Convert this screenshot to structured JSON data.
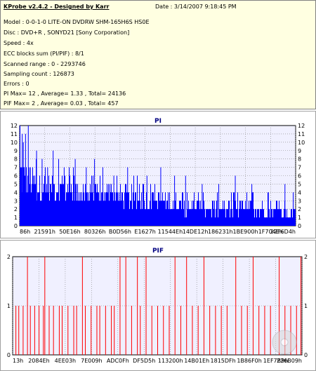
{
  "info": {
    "title": "KProbe v2.4.2 - Designed by Karr",
    "date": "Date : 3/14/2007 9:18:45 PM",
    "lines": [
      "Model : 0-0-1-0 LITE-ON DVDRW SHM-165H6S HS0E",
      "Disc : DVD+R , SONYD21 [Sony Corporation]",
      "Speed : 4x",
      "ECC blocks sum (PI/PIF) : 8/1",
      "Scanned range : 0 - 2293746",
      "Sampling count : 126873",
      "Errors : 0",
      "PI Max= 12 , Average= 1.33 , Total= 24136",
      "PIF Max= 2 , Average= 0.03 , Total= 457"
    ]
  },
  "colors": {
    "pi": "#0000ff",
    "pif": "#ff0000",
    "background": "#f0f0ff",
    "info_bg": "#ffffe1",
    "title": "#000080"
  },
  "chart_data": [
    {
      "type": "bar",
      "title": "PI",
      "ylim": [
        0,
        12
      ],
      "yticks": [
        0,
        1,
        2,
        3,
        4,
        5,
        6,
        7,
        8,
        9,
        10,
        11,
        12
      ],
      "xtick_labels": [
        "86h",
        "21591h",
        "50E16h",
        "80326h",
        "B0D56h",
        "E1627h",
        "11544Eh",
        "14DE12h",
        "186231h",
        "1BE900h",
        "1F704Eh",
        "22F6D4h"
      ],
      "x_range_label": "0 - 2293746",
      "grid": true,
      "max": 12,
      "average": 1.33,
      "envelope_profile": [
        [
          0.0,
          9
        ],
        [
          0.02,
          8
        ],
        [
          0.05,
          7
        ],
        [
          0.1,
          6
        ],
        [
          0.18,
          6
        ],
        [
          0.25,
          5
        ],
        [
          0.35,
          5
        ],
        [
          0.45,
          4
        ],
        [
          0.55,
          4
        ],
        [
          0.65,
          3
        ],
        [
          0.75,
          3
        ],
        [
          0.85,
          3
        ],
        [
          1.0,
          2
        ]
      ],
      "base_profile": [
        [
          0.0,
          3
        ],
        [
          0.15,
          3
        ],
        [
          0.4,
          2
        ],
        [
          0.75,
          1
        ],
        [
          1.0,
          1
        ]
      ],
      "spikes": [
        [
          0.0,
          12
        ],
        [
          0.008,
          11
        ],
        [
          0.012,
          10
        ],
        [
          0.02,
          11
        ],
        [
          0.03,
          12
        ],
        [
          0.06,
          9
        ],
        [
          0.08,
          8
        ],
        [
          0.1,
          7
        ],
        [
          0.12,
          9
        ],
        [
          0.14,
          8
        ],
        [
          0.16,
          7
        ],
        [
          0.2,
          8
        ],
        [
          0.24,
          7
        ],
        [
          0.27,
          8
        ],
        [
          0.3,
          7
        ],
        [
          0.34,
          6
        ],
        [
          0.39,
          7
        ],
        [
          0.46,
          6
        ],
        [
          0.51,
          7
        ],
        [
          0.56,
          6
        ],
        [
          0.6,
          6
        ],
        [
          0.66,
          5
        ],
        [
          0.72,
          5
        ],
        [
          0.78,
          6
        ],
        [
          0.84,
          5
        ],
        [
          0.9,
          4
        ],
        [
          0.96,
          5
        ],
        [
          0.99,
          4
        ]
      ]
    },
    {
      "type": "bar",
      "title": "PIF",
      "ylim": [
        0,
        2
      ],
      "yticks": [
        0,
        1,
        2
      ],
      "xtick_labels": [
        "13h",
        "2084Eh",
        "4EE03h",
        "7E009h",
        "ADC0Fh",
        "DF5D5h",
        "113200h",
        "14B01Eh",
        "1815DFh",
        "1B86F0h",
        "1EF7B9h",
        "226B09h"
      ],
      "grid": true,
      "max": 2,
      "average": 0.03,
      "twos": [
        0.05,
        0.11,
        0.24,
        0.37,
        0.39,
        0.43,
        0.46,
        0.56,
        0.6,
        0.66,
        0.77,
        0.83,
        0.92,
        0.995
      ],
      "ones": [
        0.01,
        0.02,
        0.035,
        0.06,
        0.075,
        0.09,
        0.105,
        0.125,
        0.14,
        0.16,
        0.17,
        0.19,
        0.21,
        0.22,
        0.25,
        0.27,
        0.29,
        0.3,
        0.32,
        0.34,
        0.35,
        0.41,
        0.44,
        0.48,
        0.5,
        0.52,
        0.54,
        0.58,
        0.62,
        0.64,
        0.68,
        0.7,
        0.72,
        0.74,
        0.79,
        0.81,
        0.85,
        0.87,
        0.89,
        0.94,
        0.96,
        0.98
      ]
    }
  ]
}
